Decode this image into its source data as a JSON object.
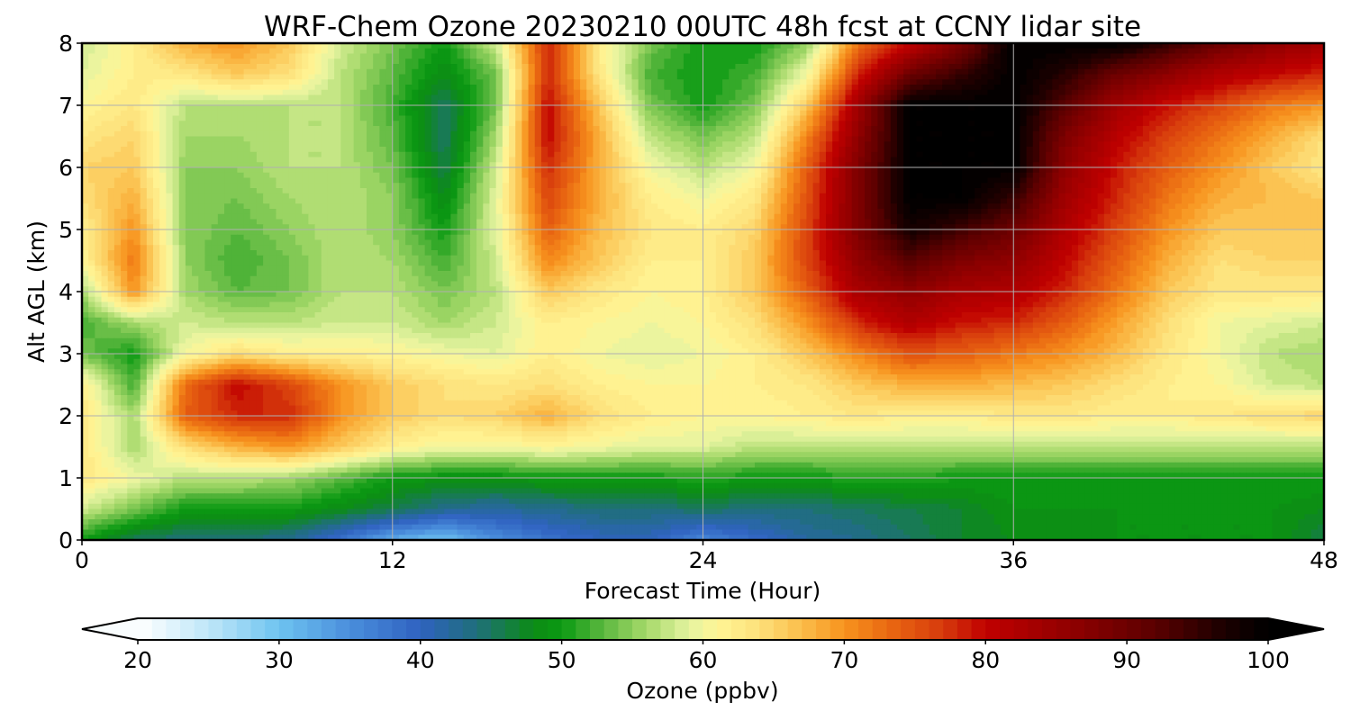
{
  "chart_data": {
    "type": "heatmap",
    "title": "WRF-Chem Ozone  20230210 00UTC 48h fcst at CCNY lidar site",
    "xlabel": "Forecast Time (Hour)",
    "ylabel": "Alt AGL (km)",
    "xlim": [
      0,
      48
    ],
    "ylim": [
      0,
      8
    ],
    "xticks": [
      0,
      12,
      24,
      36,
      48
    ],
    "yticks": [
      0,
      1,
      2,
      3,
      4,
      5,
      6,
      7,
      8
    ],
    "grid": true,
    "colorbar": {
      "label": "Ozone  (ppbv)",
      "range": [
        20,
        100
      ],
      "ticks": [
        20,
        30,
        40,
        50,
        60,
        70,
        80,
        90,
        100
      ],
      "extend": "both",
      "step": 1,
      "colors": [
        [
          20,
          "#ffffff"
        ],
        [
          25,
          "#bfe6f8"
        ],
        [
          30,
          "#6ec3f0"
        ],
        [
          35,
          "#4a8edc"
        ],
        [
          40,
          "#2f62c0"
        ],
        [
          44,
          "#1f6f7a"
        ],
        [
          48,
          "#0c8b15"
        ],
        [
          50,
          "#0a9a12"
        ],
        [
          53,
          "#5db840"
        ],
        [
          56,
          "#a6d96a"
        ],
        [
          59,
          "#e4f3a0"
        ],
        [
          61,
          "#fff696"
        ],
        [
          64,
          "#fde07a"
        ],
        [
          67,
          "#fbbd4a"
        ],
        [
          70,
          "#f7931e"
        ],
        [
          73,
          "#ea6a12"
        ],
        [
          77,
          "#d63a0c"
        ],
        [
          80,
          "#c00000"
        ],
        [
          86,
          "#900000"
        ],
        [
          92,
          "#5a0000"
        ],
        [
          97,
          "#1a0000"
        ],
        [
          100,
          "#000000"
        ]
      ]
    },
    "x": [
      0,
      2,
      4,
      6,
      8,
      10,
      12,
      14,
      16,
      18,
      20,
      22,
      24,
      26,
      28,
      30,
      32,
      34,
      36,
      38,
      40,
      42,
      44,
      46,
      48
    ],
    "y": [
      0,
      0.5,
      1,
      1.5,
      2,
      2.5,
      3,
      3.5,
      4,
      4.5,
      5,
      5.5,
      6,
      6.5,
      7,
      7.5,
      8
    ],
    "z": [
      [
        50,
        45,
        44,
        44,
        43,
        38,
        32,
        30,
        35,
        38,
        40,
        40,
        36,
        39,
        42,
        43,
        45,
        47,
        48,
        48,
        49,
        49,
        49,
        49,
        46
      ],
      [
        58,
        54,
        50,
        50,
        50,
        48,
        46,
        43,
        42,
        43,
        44,
        44,
        45,
        44,
        44,
        45,
        46,
        47,
        49,
        49,
        49,
        49,
        49,
        49,
        48
      ],
      [
        63,
        60,
        57,
        57,
        56,
        53,
        50,
        49,
        49,
        50,
        50,
        50,
        51,
        50,
        50,
        51,
        51,
        50,
        50,
        50,
        50,
        50,
        50,
        50,
        50
      ],
      [
        63,
        56,
        64,
        68,
        70,
        66,
        62,
        60,
        60,
        61,
        60,
        59,
        59,
        57,
        57,
        57,
        57,
        57,
        57,
        57,
        57,
        57,
        57,
        57,
        57
      ],
      [
        63,
        56,
        74,
        78,
        78,
        70,
        66,
        64,
        65,
        68,
        64,
        62,
        61,
        61,
        62,
        63,
        62,
        62,
        63,
        63,
        62,
        62,
        63,
        64,
        65
      ],
      [
        62,
        52,
        73,
        80,
        76,
        70,
        66,
        64,
        63,
        64,
        62,
        61,
        61,
        62,
        63,
        66,
        68,
        68,
        67,
        66,
        64,
        62,
        61,
        58,
        57
      ],
      [
        54,
        50,
        60,
        64,
        62,
        62,
        61,
        60,
        59,
        62,
        60,
        59,
        60,
        62,
        66,
        71,
        75,
        74,
        72,
        70,
        67,
        63,
        60,
        57,
        56
      ],
      [
        52,
        56,
        58,
        57,
        57,
        58,
        58,
        56,
        58,
        62,
        61,
        60,
        61,
        64,
        70,
        78,
        82,
        79,
        78,
        74,
        69,
        64,
        60,
        59,
        58
      ],
      [
        56,
        70,
        56,
        53,
        54,
        57,
        57,
        54,
        57,
        66,
        63,
        61,
        62,
        66,
        74,
        83,
        86,
        83,
        82,
        78,
        72,
        66,
        63,
        63,
        63
      ],
      [
        61,
        72,
        55,
        52,
        54,
        57,
        56,
        52,
        58,
        71,
        66,
        62,
        62,
        66,
        76,
        86,
        92,
        88,
        86,
        80,
        74,
        68,
        64,
        65,
        65
      ],
      [
        62,
        70,
        55,
        53,
        55,
        57,
        55,
        50,
        59,
        74,
        67,
        63,
        62,
        65,
        76,
        88,
        98,
        94,
        90,
        82,
        76,
        70,
        66,
        66,
        66
      ],
      [
        64,
        68,
        55,
        54,
        56,
        57,
        55,
        48,
        59,
        76,
        68,
        62,
        60,
        63,
        75,
        88,
        100,
        100,
        95,
        84,
        78,
        72,
        68,
        67,
        66
      ],
      [
        65,
        66,
        55,
        55,
        57,
        57,
        54,
        46,
        58,
        78,
        68,
        60,
        57,
        60,
        74,
        88,
        100,
        100,
        100,
        86,
        79,
        74,
        70,
        66,
        63
      ],
      [
        63,
        65,
        56,
        56,
        57,
        57,
        53,
        45,
        56,
        80,
        68,
        57,
        54,
        57,
        71,
        86,
        100,
        100,
        100,
        88,
        81,
        76,
        72,
        68,
        64
      ],
      [
        61,
        63,
        57,
        57,
        57,
        57,
        52,
        45,
        54,
        80,
        66,
        54,
        50,
        54,
        66,
        84,
        100,
        100,
        100,
        92,
        84,
        79,
        76,
        72,
        70
      ],
      [
        59,
        62,
        63,
        66,
        64,
        57,
        53,
        48,
        54,
        78,
        63,
        52,
        50,
        52,
        60,
        78,
        90,
        95,
        100,
        96,
        90,
        86,
        82,
        80,
        78
      ],
      [
        58,
        62,
        68,
        70,
        66,
        58,
        54,
        50,
        58,
        78,
        62,
        54,
        50,
        50,
        55,
        72,
        80,
        88,
        100,
        100,
        100,
        95,
        90,
        86,
        84
      ]
    ]
  }
}
